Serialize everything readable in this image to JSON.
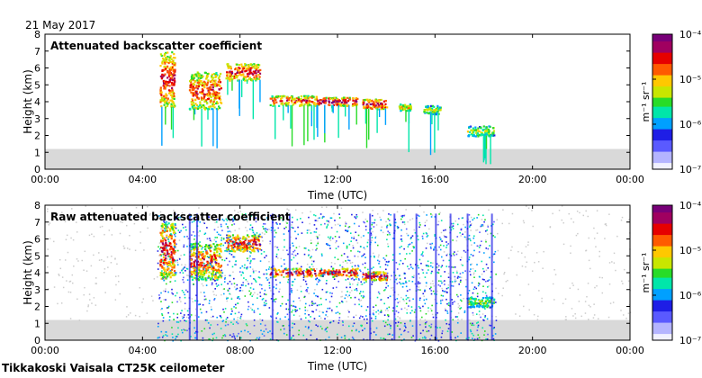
{
  "header": {
    "date": "21 May 2017",
    "footer": "Tikkakoski Vaisala CT25K ceilometer"
  },
  "colors": {
    "background_noise": "#d9d9d9",
    "colormap": [
      "#f0f0ff",
      "#b4b4ff",
      "#5a5aff",
      "#1e1ee6",
      "#00a0ff",
      "#00e6aa",
      "#28dc28",
      "#c8e600",
      "#ffc800",
      "#ff5a00",
      "#e60000",
      "#a00060",
      "#780078"
    ]
  },
  "chart_data": [
    {
      "type": "heatmap",
      "title": "Attenuated backscatter coefficient",
      "xlabel": "Time (UTC)",
      "ylabel": "Height (km)",
      "xlim": [
        0,
        24
      ],
      "ylim": [
        0,
        8
      ],
      "xticks": [
        "00:00",
        "04:00",
        "08:00",
        "12:00",
        "16:00",
        "20:00",
        "00:00"
      ],
      "yticks": [
        "0",
        "1",
        "2",
        "3",
        "4",
        "5",
        "6",
        "7",
        "8"
      ],
      "colorbar": {
        "label": "m⁻¹ sr⁻¹",
        "ticks": [
          "10⁻⁷",
          "10⁻⁶",
          "10⁻⁵",
          "10⁻⁴"
        ],
        "scale": "log",
        "range": [
          1e-07,
          0.0001
        ]
      },
      "features": [
        {
          "kind": "cloud",
          "t": [
            4.7,
            5.3
          ],
          "h": [
            3.7,
            7.0
          ],
          "intensity": 0.75
        },
        {
          "kind": "cloud",
          "t": [
            5.9,
            7.2
          ],
          "h": [
            3.6,
            5.8
          ],
          "intensity": 0.7
        },
        {
          "kind": "cloud",
          "t": [
            7.4,
            8.8
          ],
          "h": [
            5.3,
            6.3
          ],
          "intensity": 0.75
        },
        {
          "kind": "cloud",
          "t": [
            9.2,
            11.2
          ],
          "h": [
            3.8,
            4.4
          ],
          "intensity": 0.7
        },
        {
          "kind": "cloud",
          "t": [
            11.2,
            12.8
          ],
          "h": [
            3.8,
            4.3
          ],
          "intensity": 0.85
        },
        {
          "kind": "cloud",
          "t": [
            13.0,
            14.0
          ],
          "h": [
            3.6,
            4.2
          ],
          "intensity": 0.8
        },
        {
          "kind": "cloud",
          "t": [
            14.5,
            15.0
          ],
          "h": [
            3.5,
            3.9
          ],
          "intensity": 0.5
        },
        {
          "kind": "cloud",
          "t": [
            15.5,
            16.2
          ],
          "h": [
            3.3,
            3.8
          ],
          "intensity": 0.45
        },
        {
          "kind": "cloud",
          "t": [
            17.3,
            18.4
          ],
          "h": [
            2.0,
            2.6
          ],
          "intensity": 0.45
        }
      ]
    },
    {
      "type": "heatmap",
      "title": "Raw attenuated backscatter coefficient",
      "xlabel": "Time (UTC)",
      "ylabel": "Height (km)",
      "xlim": [
        0,
        24
      ],
      "ylim": [
        0,
        8
      ],
      "xticks": [
        "00:00",
        "04:00",
        "08:00",
        "12:00",
        "16:00",
        "20:00",
        "00:00"
      ],
      "yticks": [
        "0",
        "1",
        "2",
        "3",
        "4",
        "5",
        "6",
        "7",
        "8"
      ],
      "colorbar": {
        "label": "m⁻¹ sr⁻¹",
        "ticks": [
          "10⁻⁷",
          "10⁻⁶",
          "10⁻⁵",
          "10⁻⁴"
        ],
        "scale": "log",
        "range": [
          1e-07,
          0.0001
        ]
      },
      "features": [
        {
          "kind": "cloud",
          "t": [
            4.7,
            5.3
          ],
          "h": [
            3.7,
            7.0
          ],
          "intensity": 0.75
        },
        {
          "kind": "cloud",
          "t": [
            5.9,
            7.2
          ],
          "h": [
            3.6,
            5.8
          ],
          "intensity": 0.7
        },
        {
          "kind": "cloud",
          "t": [
            7.4,
            8.8
          ],
          "h": [
            5.3,
            6.3
          ],
          "intensity": 0.75
        },
        {
          "kind": "cloud",
          "t": [
            9.2,
            12.8
          ],
          "h": [
            3.8,
            4.3
          ],
          "intensity": 0.8
        },
        {
          "kind": "cloud",
          "t": [
            13.0,
            14.0
          ],
          "h": [
            3.6,
            4.1
          ],
          "intensity": 0.8
        },
        {
          "kind": "cloud",
          "t": [
            17.3,
            18.4
          ],
          "h": [
            2.0,
            2.6
          ],
          "intensity": 0.45
        },
        {
          "kind": "noise",
          "t": [
            4.6,
            18.5
          ],
          "h": [
            0,
            8
          ],
          "intensity": 0.3
        }
      ]
    }
  ]
}
